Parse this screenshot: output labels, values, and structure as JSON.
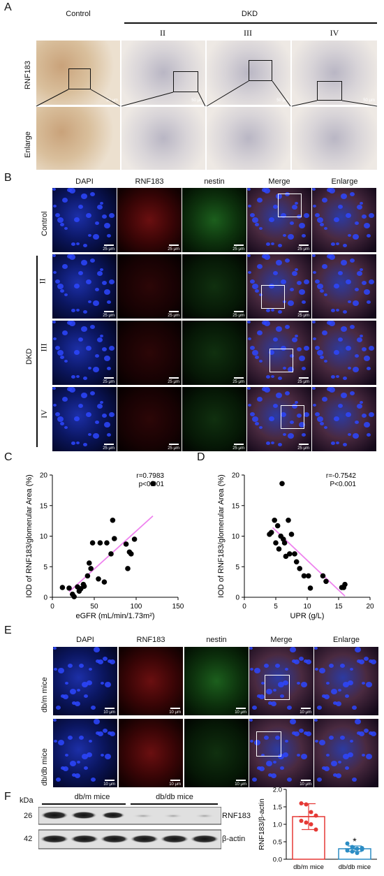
{
  "panelA": {
    "label": "A",
    "control": "Control",
    "dkd": "DKD",
    "stages": [
      "II",
      "III",
      "IV"
    ],
    "row_labels": [
      "RNF183",
      "Enlarge"
    ],
    "scale_label": "50 μm"
  },
  "panelB": {
    "label": "B",
    "channels": [
      "DAPI",
      "RNF183",
      "nestin",
      "Merge",
      "Enlarge"
    ],
    "control": "Control",
    "dkd": "DKD",
    "stages": [
      "II",
      "III",
      "IV"
    ],
    "scale_label": "25 μm"
  },
  "panelC": {
    "label": "C",
    "chart_data": {
      "type": "scatter",
      "xlabel": "eGFR (mL/min/1.73m²)",
      "ylabel": "IOD of RNF183/glomerular Area (%)",
      "xlim": [
        0,
        150
      ],
      "ylim": [
        0,
        20
      ],
      "xticks": [
        0,
        50,
        100,
        150
      ],
      "yticks": [
        0,
        5,
        10,
        15,
        20
      ],
      "annotation": [
        "r=0.7983",
        "p<0.001"
      ],
      "x": [
        12,
        20,
        24,
        26,
        30,
        32,
        34,
        37,
        38,
        42,
        44,
        46,
        48,
        55,
        57,
        62,
        65,
        70,
        72,
        74,
        88,
        90,
        92,
        94,
        98,
        120
      ],
      "y": [
        1.6,
        1.5,
        0.5,
        0.1,
        1.7,
        1.0,
        1.4,
        2.1,
        1.8,
        3.5,
        5.6,
        4.7,
        8.9,
        3.0,
        8.9,
        2.5,
        8.9,
        7.1,
        12.6,
        9.6,
        8.7,
        4.7,
        7.4,
        7.1,
        9.5,
        18.6
      ],
      "fit": {
        "x": [
          20,
          120
        ],
        "y": [
          0.9,
          13.3
        ]
      },
      "point_color": "#000000",
      "fit_color": "#ee82ee"
    }
  },
  "panelD": {
    "label": "D",
    "chart_data": {
      "type": "scatter",
      "xlabel": "UPR (g/L)",
      "ylabel": "IOD of RNF183/glomerular Area (%)",
      "xlim": [
        0,
        20
      ],
      "ylim": [
        0,
        20
      ],
      "xticks": [
        0,
        5,
        10,
        15,
        20
      ],
      "yticks": [
        0,
        5,
        10,
        15,
        20
      ],
      "annotation": [
        "r=-0.7542",
        "P<0.001"
      ],
      "x": [
        4.0,
        4.3,
        4.8,
        5.0,
        5.3,
        5.5,
        5.8,
        6.0,
        6.2,
        6.4,
        6.6,
        7.0,
        7.2,
        7.5,
        8.0,
        8.3,
        8.8,
        9.5,
        10.2,
        10.5,
        12.5,
        13.0,
        15.5,
        15.8,
        16.0
      ],
      "y": [
        10.3,
        10.6,
        12.6,
        8.9,
        11.7,
        7.9,
        10.0,
        18.6,
        9.5,
        8.9,
        6.7,
        12.6,
        7.1,
        10.3,
        7.1,
        5.8,
        4.7,
        3.5,
        3.5,
        1.5,
        3.5,
        2.6,
        1.6,
        1.6,
        2.1
      ],
      "fit": {
        "x": [
          4.5,
          16.0
        ],
        "y": [
          11.4,
          0.2
        ]
      },
      "point_color": "#000000",
      "fit_color": "#ee82ee"
    }
  },
  "panelE": {
    "label": "E",
    "channels": [
      "DAPI",
      "RNF183",
      "nestin",
      "Merge",
      "Enlarge"
    ],
    "rows": [
      "db/m mice",
      "db/db mice"
    ],
    "scale_label": "10 μm"
  },
  "panelF": {
    "label": "F",
    "kda": "kDa",
    "groups": [
      "db/m mice",
      "db/db mice"
    ],
    "bands": [
      {
        "kda": "26",
        "name": "RNF183"
      },
      {
        "kda": "42",
        "name": "β-actin"
      }
    ],
    "chart_data": {
      "type": "bar",
      "categories": [
        "db/m mice",
        "db/db mice"
      ],
      "values": [
        1.22,
        0.3
      ],
      "errors": [
        0.37,
        0.08
      ],
      "ylabel": "RNF183/β-actin",
      "ylim": [
        0,
        2.0
      ],
      "yticks": [
        0.0,
        0.5,
        1.0,
        1.5,
        2.0
      ],
      "significance": [
        "",
        "*"
      ],
      "points": [
        [
          1.6,
          1.57,
          1.35,
          1.25,
          1.1,
          1.05,
          1.0,
          0.85
        ],
        [
          0.45,
          0.35,
          0.3,
          0.28,
          0.25,
          0.22,
          0.18,
          0.32
        ]
      ],
      "colors": [
        "#e53935",
        "#2b8cc4"
      ]
    }
  }
}
